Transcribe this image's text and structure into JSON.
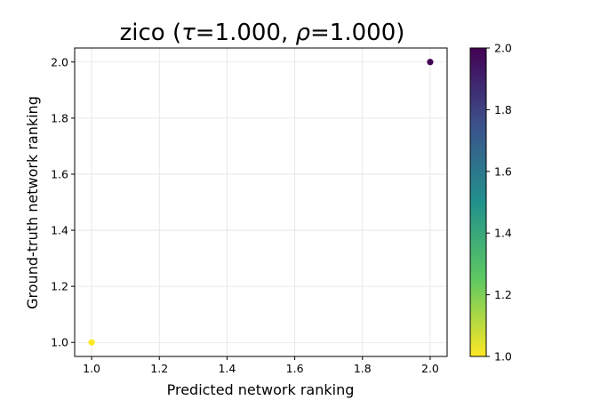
{
  "chart_data": {
    "type": "scatter",
    "title_prefix": "zico (",
    "title_tau_symbol": "τ",
    "title_tau_value": "=1.000, ",
    "title_rho_symbol": "ρ",
    "title_rho_value": "=1.000)",
    "xlabel": "Predicted network ranking",
    "ylabel": "Ground-truth network ranking",
    "xlim": [
      0.95,
      2.05
    ],
    "ylim": [
      0.95,
      2.05
    ],
    "xticks": [
      "1.0",
      "1.2",
      "1.4",
      "1.6",
      "1.8",
      "2.0"
    ],
    "yticks": [
      "1.0",
      "1.2",
      "1.4",
      "1.6",
      "1.8",
      "2.0"
    ],
    "grid": true,
    "points": [
      {
        "x": 1.0,
        "y": 1.0,
        "c": 1.0
      },
      {
        "x": 2.0,
        "y": 2.0,
        "c": 2.0
      }
    ],
    "colorbar": {
      "colormap": "viridis",
      "range": [
        1.0,
        2.0
      ],
      "ticks": [
        "1.0",
        "1.2",
        "1.4",
        "1.6",
        "1.8",
        "2.0"
      ],
      "colors": [
        "#fde725",
        "#5ec962",
        "#21918c",
        "#3b528b",
        "#440154"
      ]
    }
  }
}
